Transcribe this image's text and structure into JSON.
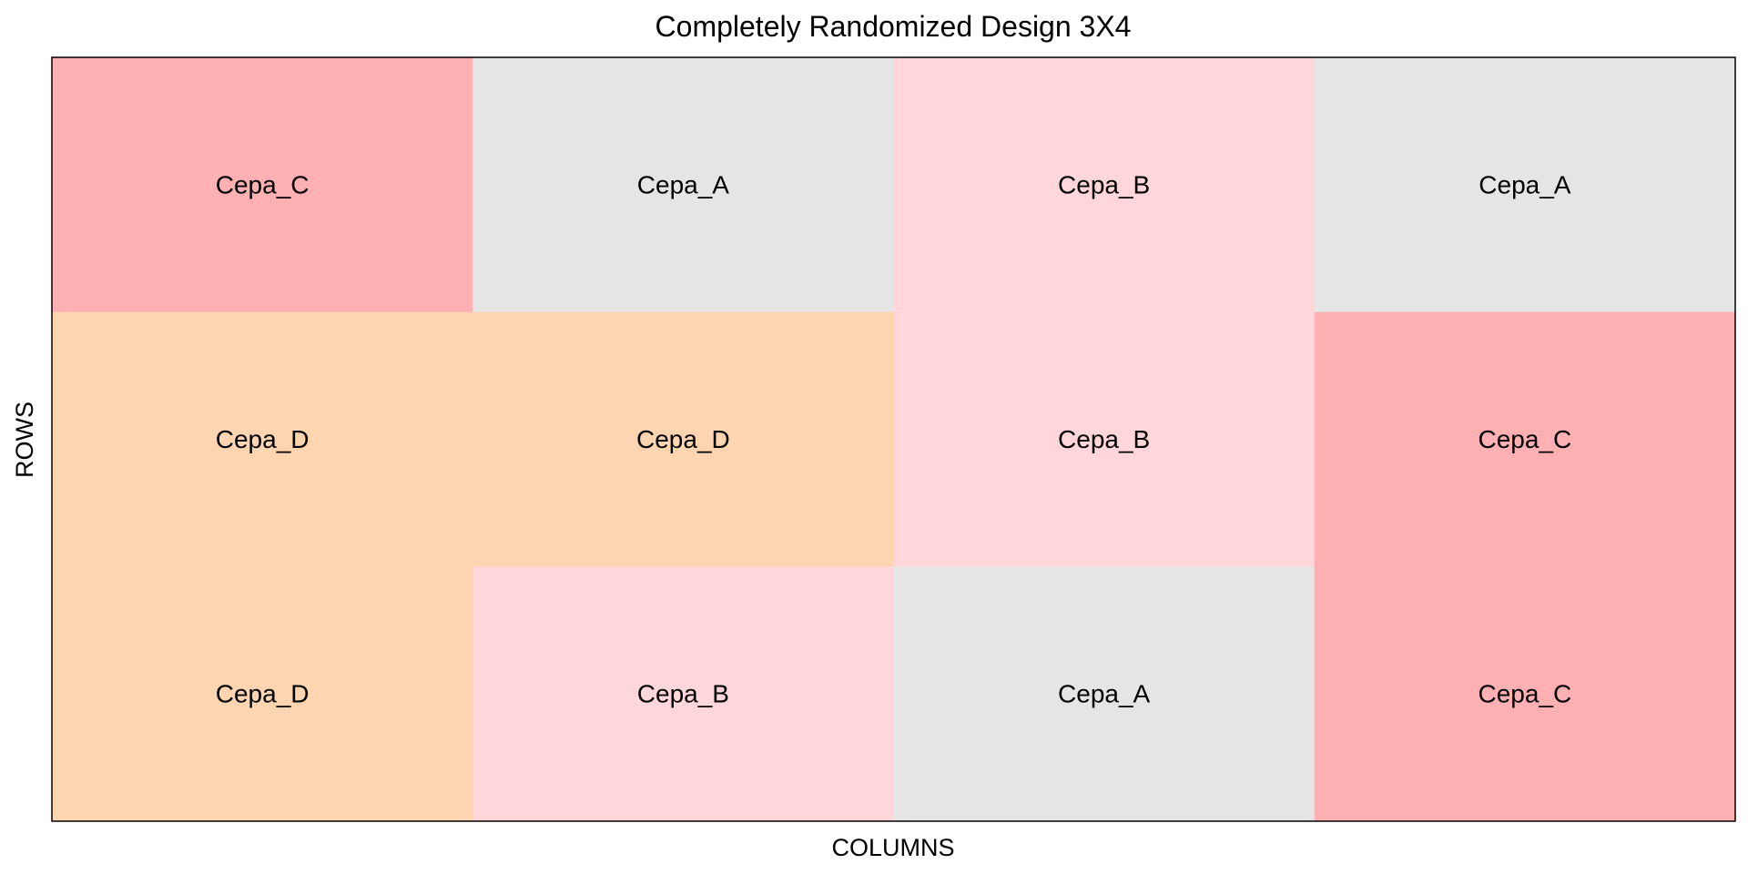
{
  "chart_data": {
    "type": "heatmap",
    "title": "Completely Randomized Design 3X4",
    "xlabel": "COLUMNS",
    "ylabel": "ROWS",
    "rows": 3,
    "columns": 4,
    "grid": false,
    "legend": "none",
    "cells": [
      [
        "Cepa_C",
        "Cepa_A",
        "Cepa_B",
        "Cepa_A"
      ],
      [
        "Cepa_D",
        "Cepa_D",
        "Cepa_B",
        "Cepa_C"
      ],
      [
        "Cepa_D",
        "Cepa_B",
        "Cepa_A",
        "Cepa_C"
      ]
    ],
    "colors": {
      "Cepa_A": "#e5e5e5",
      "Cepa_B": "#ffd6d9",
      "Cepa_C": "#ffb0b3",
      "Cepa_D": "#fed5b1"
    },
    "border_color": "#000000",
    "background": "#ffffff"
  }
}
